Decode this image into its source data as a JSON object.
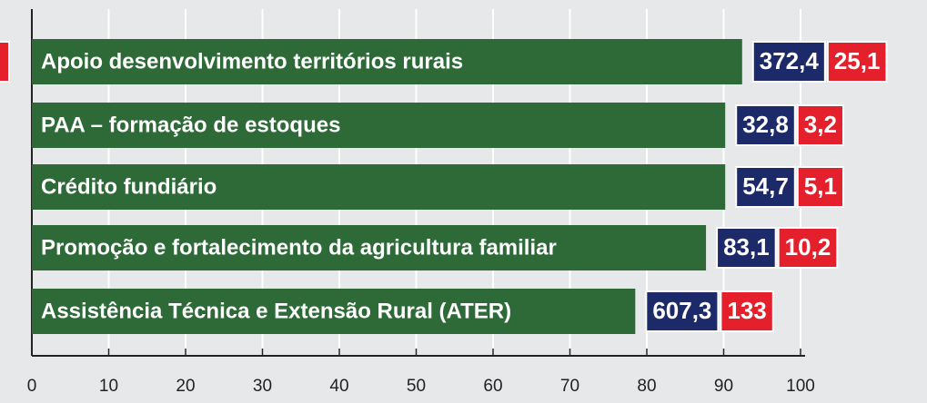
{
  "chart_data": {
    "type": "barh",
    "categories": [
      "Apoio desenvolvimento territórios rurais",
      "PAA – formação de estoques",
      "Crédito fundiário",
      "Promoção e fortalecimento da agricultura familiar",
      "Assistência Técnica e Extensão Rural (ATER)"
    ],
    "values": [
      92.4,
      90.2,
      90.2,
      87.7,
      78.5
    ],
    "color": "#2d6a38",
    "annotations": [
      {
        "color": "#1c2a6a",
        "labels": [
          "372,4",
          "32,8",
          "54,7",
          "83,1",
          "607,3"
        ]
      },
      {
        "color": "#e3202c",
        "labels": [
          "25,1",
          "3,2",
          "5,1",
          "10,2",
          "133"
        ]
      }
    ],
    "xlim": [
      0,
      100
    ],
    "xticks": [
      0,
      10,
      20,
      30,
      40,
      50,
      60,
      70,
      80,
      90,
      100
    ],
    "grid": true
  }
}
